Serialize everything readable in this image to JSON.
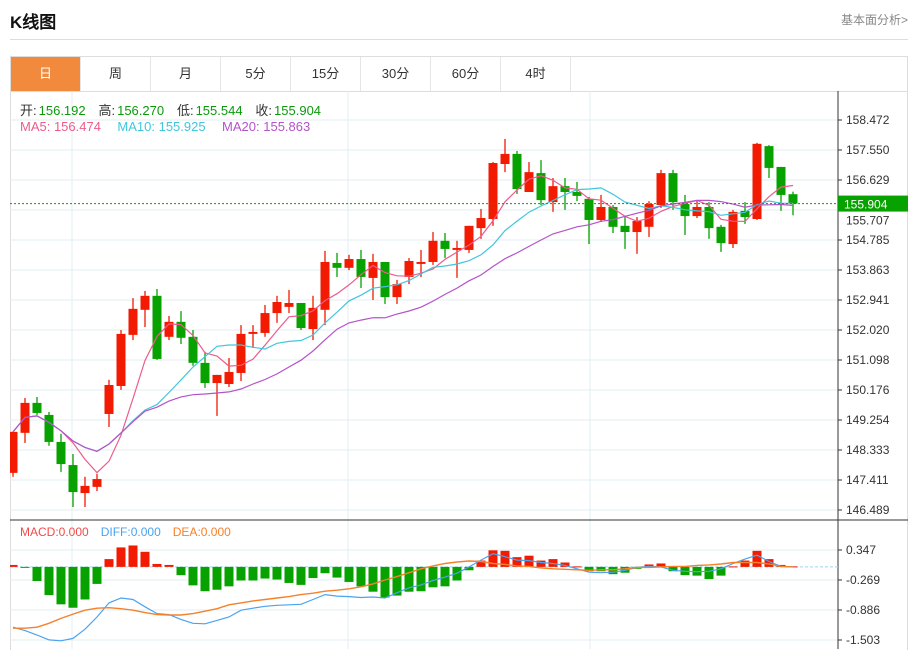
{
  "header": {
    "title": "K线图",
    "more_link": "基本面分析>"
  },
  "tabs": [
    {
      "label": "日",
      "active": true
    },
    {
      "label": "周"
    },
    {
      "label": "月"
    },
    {
      "label": "5分"
    },
    {
      "label": "15分"
    },
    {
      "label": "30分"
    },
    {
      "label": "60分"
    },
    {
      "label": "4时"
    }
  ],
  "ohlc_legend": {
    "open_label": "开:",
    "open": "156.192",
    "high_label": "高:",
    "high": "156.270",
    "low_label": "低:",
    "low": "155.544",
    "close_label": "收:",
    "close": "155.904"
  },
  "ma_legend": {
    "ma5": "MA5: 156.474",
    "ma10": "MA10: 155.925",
    "ma20": "MA20: 155.863"
  },
  "macd_legend": {
    "macd": "MACD:0.000",
    "diff": "DIFF:0.000",
    "dea": "DEA:0.000"
  },
  "current_price": "155.904",
  "colors": {
    "up": "#f21a00",
    "down": "#07a200",
    "ma5": "#ee5b8c",
    "ma10": "#41c6dc",
    "ma20": "#b453c9",
    "diff": "#4aa3f0",
    "dea": "#f5812a",
    "accent": "#f28a3e",
    "macd_label": "#f04b4b"
  },
  "chart_data": [
    {
      "type": "candlestick",
      "y_ticks": [
        "158.472",
        "157.550",
        "156.629",
        "155.707",
        "154.785",
        "153.863",
        "152.941",
        "152.020",
        "151.098",
        "150.176",
        "149.254",
        "148.333",
        "147.411",
        "146.489"
      ],
      "ylim": [
        146.489,
        158.472
      ],
      "candles": [
        [
          147.63,
          148.89,
          148.89,
          147.51
        ],
        [
          148.86,
          149.78,
          149.93,
          148.55
        ],
        [
          149.78,
          149.47,
          149.96,
          149.41
        ],
        [
          149.41,
          148.58,
          149.5,
          148.46
        ],
        [
          148.58,
          147.9,
          148.83,
          147.66
        ],
        [
          147.87,
          147.04,
          148.21,
          146.58
        ],
        [
          147.01,
          147.23,
          147.51,
          146.58
        ],
        [
          147.2,
          147.44,
          147.6,
          147.07
        ],
        [
          149.44,
          150.33,
          150.49,
          149.04
        ],
        [
          150.3,
          151.9,
          152.02,
          150.18
        ],
        [
          151.87,
          152.67,
          153.0,
          151.71
        ],
        [
          152.64,
          153.07,
          153.22,
          152.11
        ],
        [
          153.07,
          151.13,
          153.28,
          151.1
        ],
        [
          151.81,
          152.27,
          152.45,
          151.71
        ],
        [
          152.27,
          151.78,
          152.6,
          151.59
        ],
        [
          151.81,
          151.01,
          152.02,
          150.92
        ],
        [
          151.01,
          150.39,
          151.35,
          150.24
        ],
        [
          150.39,
          150.64,
          150.64,
          149.38
        ],
        [
          150.36,
          150.73,
          151.16,
          150.27
        ],
        [
          150.7,
          151.9,
          152.17,
          150.45
        ],
        [
          151.9,
          151.96,
          152.17,
          151.47
        ],
        [
          151.93,
          152.54,
          152.79,
          151.81
        ],
        [
          152.54,
          152.88,
          153.07,
          152.24
        ],
        [
          152.73,
          152.85,
          153.25,
          152.54
        ],
        [
          152.85,
          152.08,
          152.85,
          152.02
        ],
        [
          152.05,
          152.7,
          153.07,
          151.71
        ],
        [
          152.64,
          154.11,
          154.45,
          152.17
        ],
        [
          154.08,
          153.93,
          154.39,
          153.65
        ],
        [
          153.93,
          154.2,
          154.33,
          153.86
        ],
        [
          154.2,
          153.65,
          154.48,
          153.31
        ],
        [
          153.62,
          154.11,
          154.36,
          152.94
        ],
        [
          154.11,
          153.03,
          154.11,
          152.82
        ],
        [
          153.03,
          153.43,
          153.56,
          152.82
        ],
        [
          153.65,
          154.14,
          154.23,
          153.43
        ],
        [
          154.05,
          154.11,
          154.48,
          153.65
        ],
        [
          154.11,
          154.76,
          155.03,
          154.02
        ],
        [
          154.76,
          154.51,
          155.0,
          154.23
        ],
        [
          154.48,
          154.54,
          154.76,
          153.62
        ],
        [
          154.48,
          155.22,
          155.22,
          154.39
        ],
        [
          155.15,
          155.46,
          155.74,
          154.82
        ],
        [
          155.43,
          157.15,
          157.18,
          155.22
        ],
        [
          157.12,
          157.43,
          157.89,
          156.87
        ],
        [
          157.43,
          156.35,
          157.52,
          156.2
        ],
        [
          156.26,
          156.87,
          157.18,
          156.26
        ],
        [
          156.84,
          156.01,
          157.24,
          155.86
        ],
        [
          155.95,
          156.44,
          156.69,
          155.65
        ],
        [
          156.44,
          156.26,
          156.69,
          155.71
        ],
        [
          156.26,
          156.14,
          156.57,
          155.98
        ],
        [
          156.05,
          155.4,
          156.11,
          154.66
        ],
        [
          155.4,
          155.8,
          156.17,
          155.34
        ],
        [
          155.8,
          155.19,
          155.86,
          155.0
        ],
        [
          155.22,
          155.03,
          155.52,
          154.51
        ],
        [
          155.03,
          155.37,
          155.49,
          154.36
        ],
        [
          155.19,
          155.89,
          155.98,
          154.88
        ],
        [
          155.86,
          156.84,
          156.94,
          155.77
        ],
        [
          156.84,
          155.95,
          156.94,
          155.71
        ],
        [
          155.89,
          155.52,
          156.17,
          154.94
        ],
        [
          155.52,
          155.8,
          155.98,
          155.46
        ],
        [
          155.8,
          155.15,
          155.95,
          154.82
        ],
        [
          155.19,
          154.69,
          155.25,
          154.42
        ],
        [
          154.66,
          155.65,
          155.71,
          154.54
        ],
        [
          155.68,
          155.49,
          155.95,
          155.28
        ],
        [
          155.43,
          157.74,
          157.77,
          155.4
        ],
        [
          157.67,
          157.0,
          157.7,
          156.69
        ],
        [
          157.03,
          156.17,
          157.03,
          155.68
        ],
        [
          156.192,
          155.904,
          156.27,
          155.544
        ]
      ],
      "candle_format": [
        "open",
        "close",
        "high",
        "low"
      ],
      "ma_periods": [
        5,
        10,
        20
      ],
      "grid": true
    },
    {
      "type": "bar+line",
      "y_ticks": [
        "0.347",
        "-0.269",
        "-0.886",
        "-1.503"
      ],
      "ylim": [
        -1.503,
        0.347
      ],
      "macd": [
        0.04,
        -0.02,
        -0.29,
        -0.58,
        -0.77,
        -0.84,
        -0.67,
        -0.35,
        0.16,
        0.4,
        0.44,
        0.31,
        0.06,
        0.04,
        -0.17,
        -0.38,
        -0.5,
        -0.47,
        -0.4,
        -0.28,
        -0.28,
        -0.24,
        -0.26,
        -0.33,
        -0.37,
        -0.23,
        -0.13,
        -0.22,
        -0.31,
        -0.4,
        -0.51,
        -0.63,
        -0.59,
        -0.51,
        -0.5,
        -0.42,
        -0.4,
        -0.28,
        -0.07,
        0.13,
        0.34,
        0.33,
        0.2,
        0.23,
        0.13,
        0.16,
        0.09,
        0.01,
        -0.09,
        -0.09,
        -0.15,
        -0.12,
        -0.04,
        0.05,
        0.07,
        -0.09,
        -0.17,
        -0.18,
        -0.25,
        -0.18,
        0.01,
        0.13,
        0.33,
        0.16,
        0.04,
        0.01
      ],
      "diff": [
        -1.24,
        -1.31,
        -1.4,
        -1.5,
        -1.52,
        -1.47,
        -1.28,
        -1.03,
        -0.74,
        -0.64,
        -0.67,
        -0.82,
        -0.96,
        -0.98,
        -1.08,
        -1.16,
        -1.17,
        -1.1,
        -1.03,
        -0.89,
        -0.85,
        -0.81,
        -0.79,
        -0.78,
        -0.77,
        -0.67,
        -0.57,
        -0.6,
        -0.61,
        -0.63,
        -0.62,
        -0.64,
        -0.53,
        -0.43,
        -0.37,
        -0.28,
        -0.21,
        -0.13,
        0.0,
        0.14,
        0.27,
        0.21,
        0.14,
        0.13,
        0.09,
        0.07,
        0.03,
        -0.04,
        -0.11,
        -0.12,
        -0.11,
        -0.07,
        -0.01,
        0.01,
        0.0,
        -0.07,
        -0.09,
        -0.1,
        -0.09,
        -0.04,
        0.07,
        0.16,
        0.24,
        0.11,
        0.01,
        0.0
      ],
      "dea": [
        -1.26,
        -1.26,
        -1.24,
        -1.16,
        -1.06,
        -0.97,
        -0.89,
        -0.85,
        -0.84,
        -0.86,
        -0.89,
        -0.94,
        -0.98,
        -0.99,
        -0.99,
        -0.96,
        -0.91,
        -0.86,
        -0.78,
        -0.74,
        -0.7,
        -0.67,
        -0.64,
        -0.61,
        -0.57,
        -0.54,
        -0.5,
        -0.48,
        -0.45,
        -0.41,
        -0.35,
        -0.27,
        -0.2,
        -0.12,
        -0.04,
        0.02,
        0.07,
        0.1,
        0.12,
        0.11,
        0.07,
        0.05,
        0.02,
        0.01,
        -0.02,
        -0.04,
        -0.05,
        -0.06,
        -0.07,
        -0.06,
        -0.06,
        -0.04,
        -0.01,
        -0.01,
        0.0,
        0.01,
        0.01,
        0.03,
        0.04,
        0.06,
        0.09,
        0.09,
        0.09,
        0.06,
        0.01,
        0.0
      ]
    }
  ]
}
